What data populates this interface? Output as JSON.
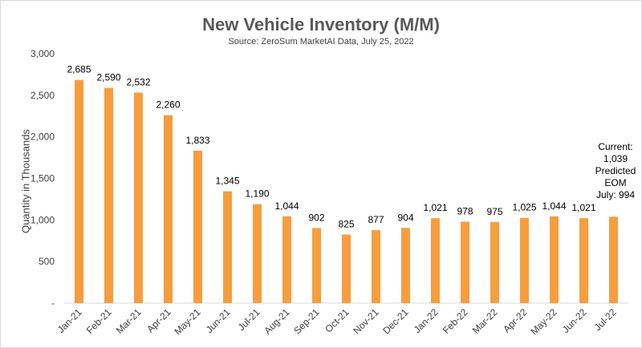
{
  "chart_data": {
    "type": "bar",
    "title": "New Vehicle Inventory (M/M)",
    "subtitle": "Source: ZeroSum MarketAI Data, July 25, 2022",
    "xlabel": "",
    "ylabel": "Quantity in Thousands",
    "ylim": [
      0,
      3000
    ],
    "yticks": [
      0,
      500,
      1000,
      1500,
      2000,
      2500,
      3000
    ],
    "ytick_labels": [
      "-",
      "500",
      "1,000",
      "1,500",
      "2,000",
      "2,500",
      "3,000"
    ],
    "categories": [
      "Jan-21",
      "Feb-21",
      "Mar-21",
      "Apr-21",
      "May-21",
      "Jun-21",
      "Jul-21",
      "Aug-21",
      "Sep-21",
      "Oct-21",
      "Nov-21",
      "Dec-21",
      "Jan-22",
      "Feb-22",
      "Mar-22",
      "Apr-22",
      "May-22",
      "Jun-22",
      "Jul-22"
    ],
    "values": [
      2685,
      2590,
      2532,
      2260,
      1833,
      1345,
      1190,
      1044,
      902,
      825,
      877,
      904,
      1021,
      978,
      975,
      1025,
      1044,
      1021,
      1039
    ],
    "data_labels": [
      "2,685",
      "2,590",
      "2,532",
      "2,260",
      "1,833",
      "1,345",
      "1,190",
      "1,044",
      "902",
      "825",
      "877",
      "904",
      "1,021",
      "978",
      "975",
      "1,025",
      "1,044",
      "1,021",
      ""
    ],
    "bar_color": "#f79d3e",
    "grid": false,
    "annotation": {
      "lines": [
        "Current:",
        "1,039",
        "Predicted",
        "EOM",
        "July: 994"
      ]
    }
  }
}
